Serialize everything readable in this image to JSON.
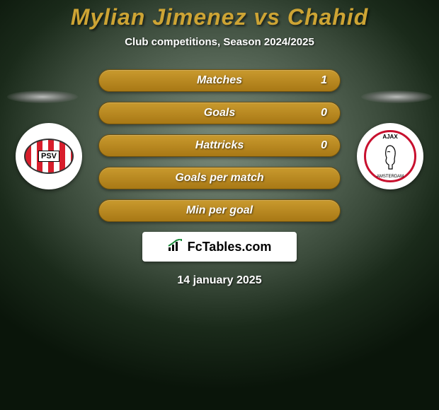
{
  "title": {
    "text": "Mylian Jimenez vs Chahid",
    "color": "#cda434"
  },
  "subtitle": "Club competitions, Season 2024/2025",
  "stats": {
    "bar_bg_gradient": [
      "#c99a2e",
      "#a87815"
    ],
    "rows": [
      {
        "label": "Matches",
        "right": "1"
      },
      {
        "label": "Goals",
        "right": "0"
      },
      {
        "label": "Hattricks",
        "right": "0"
      },
      {
        "label": "Goals per match",
        "right": ""
      },
      {
        "label": "Min per goal",
        "right": ""
      }
    ]
  },
  "clubs": {
    "left": {
      "name": "PSV",
      "badge_text": "PSV"
    },
    "right": {
      "name": "Ajax",
      "badge_top": "AJAX",
      "badge_bottom": "AMSTERDAM"
    }
  },
  "branding": {
    "text": "FcTables.com"
  },
  "date": "14 january 2025",
  "colors": {
    "text_white": "#ffffff",
    "accent": "#cda434",
    "psv_red": "#d81e2c",
    "ajax_red": "#c8102e"
  }
}
